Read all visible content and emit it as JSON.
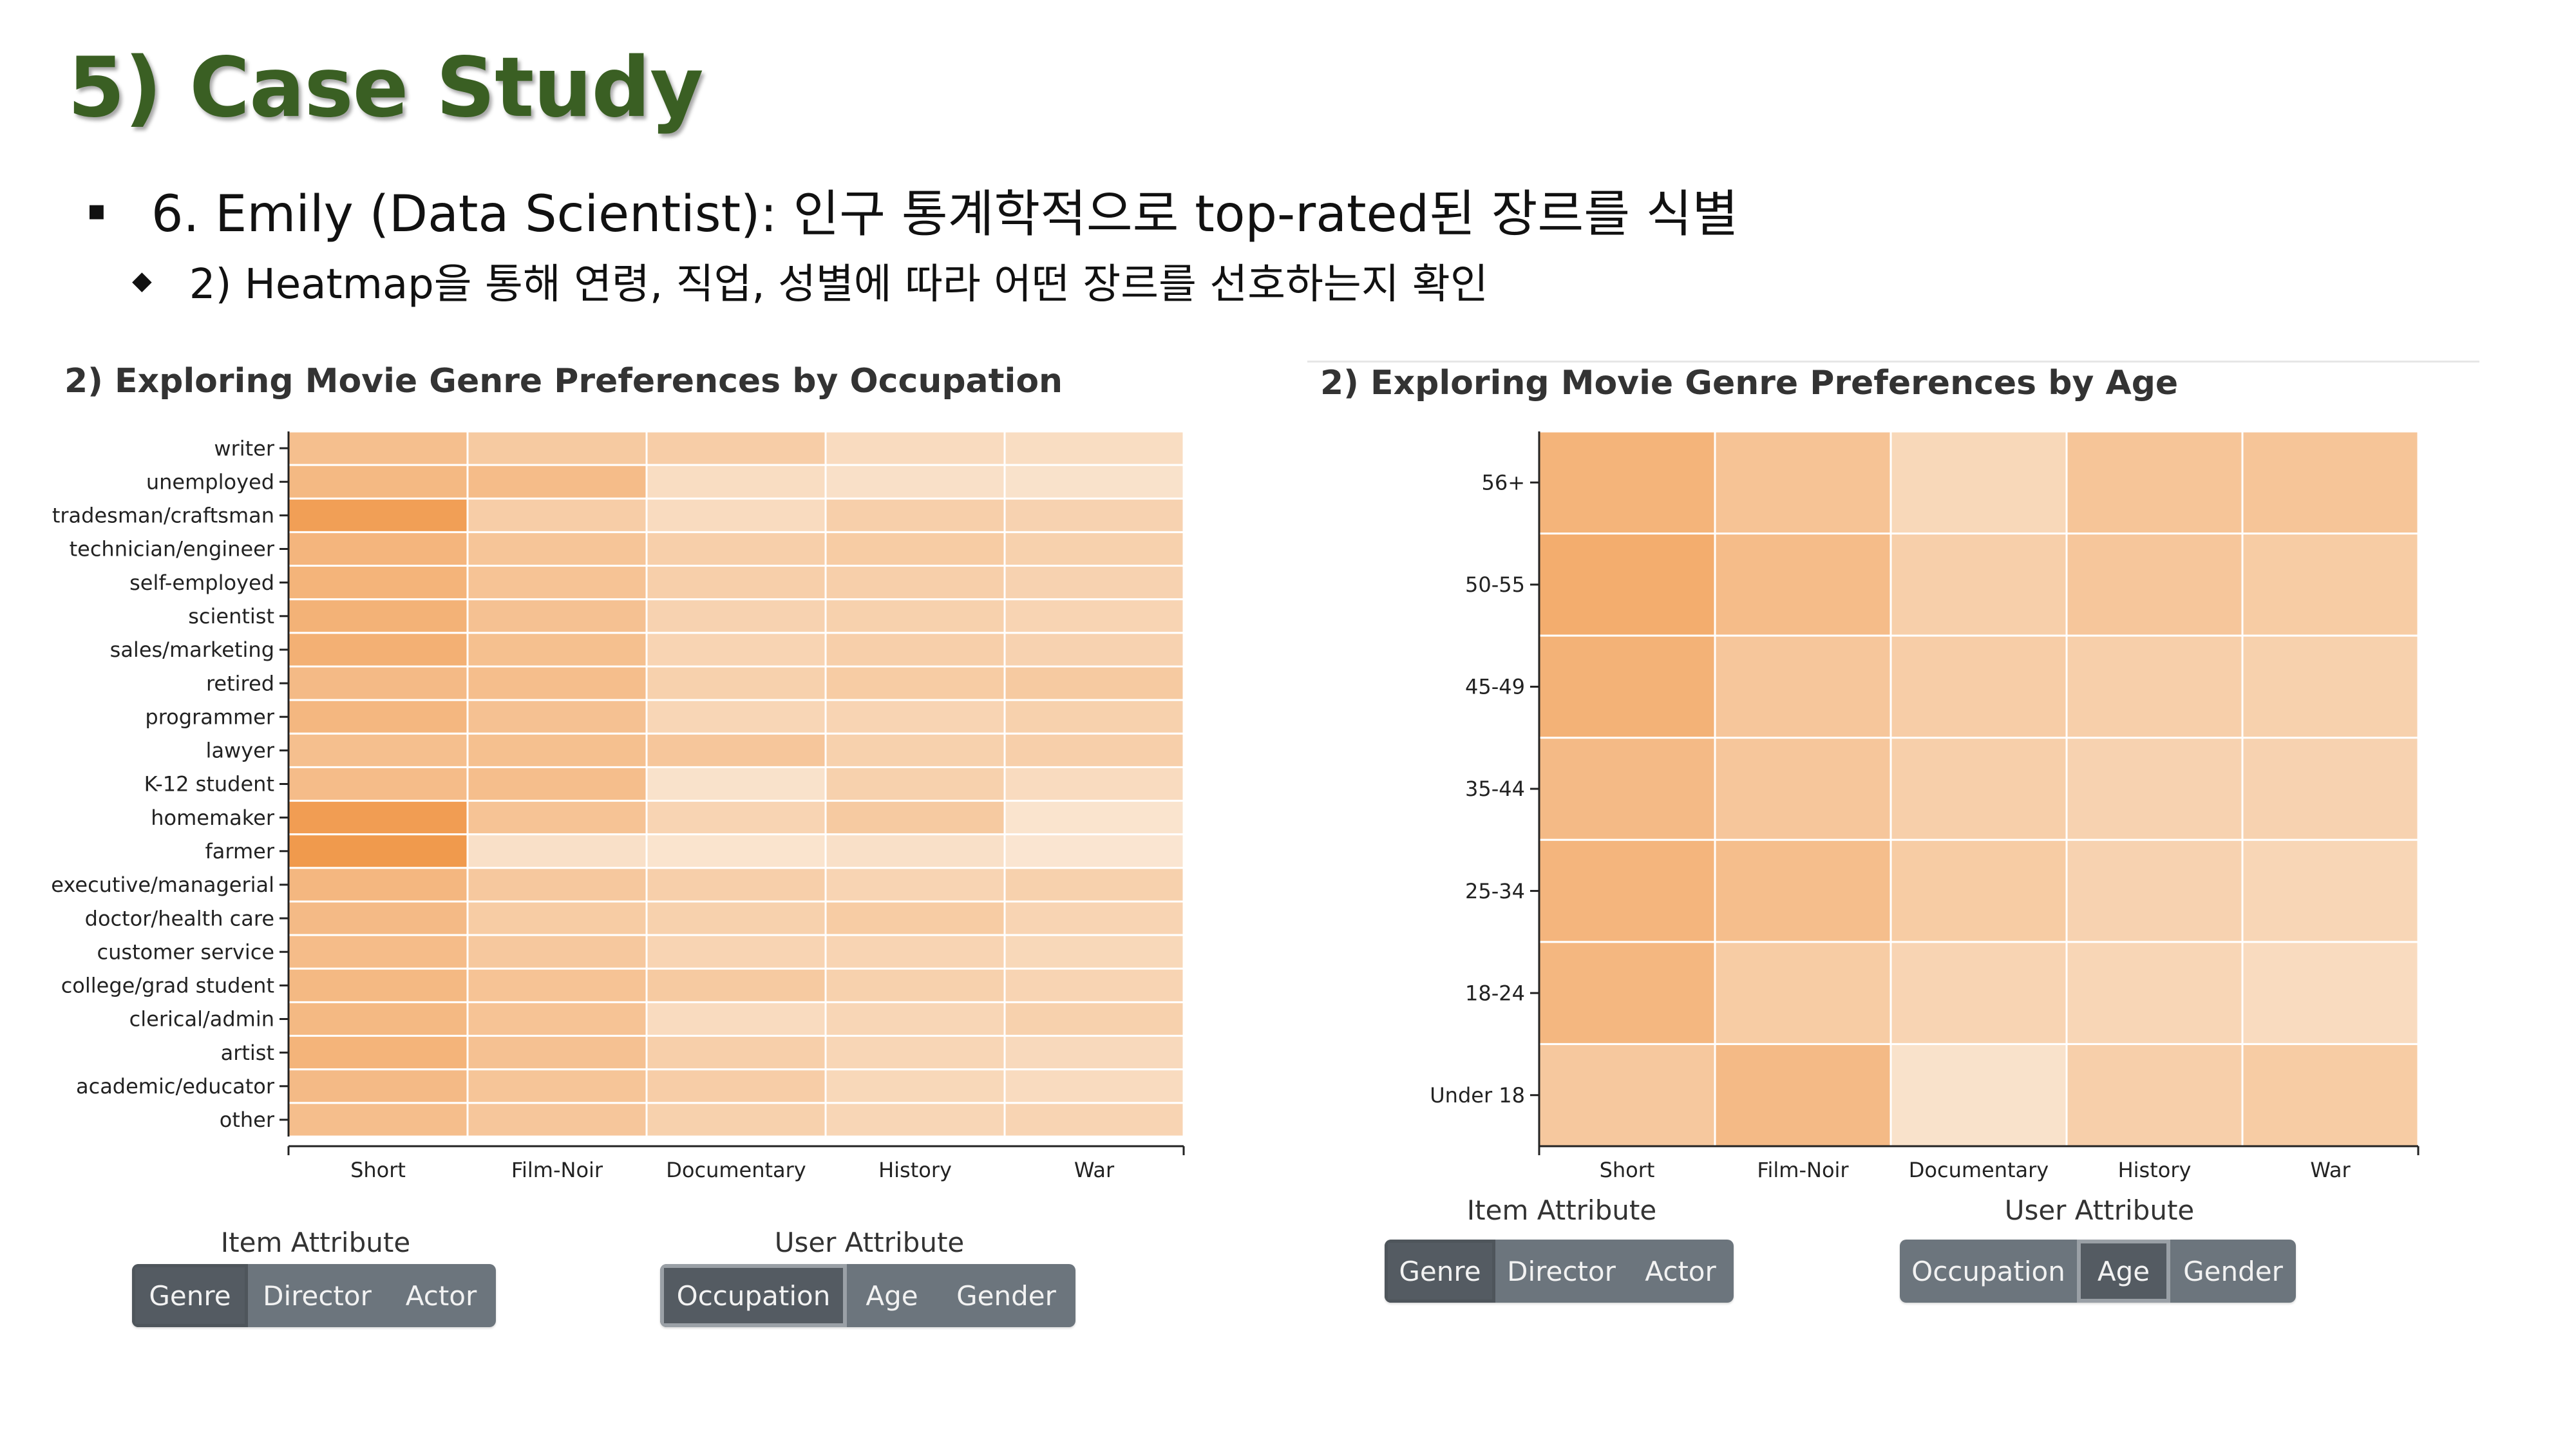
{
  "slide": {
    "title": "5) Case Study",
    "bullet1": "6. Emily (Data Scientist): 인구 통계학적으로 top-rated된 장르를 식별",
    "bullet1_marker": "▪",
    "bullet2": "2) Heatmap을 통해 연령, 직업, 성별에 따라 어떤 장르를 선호하는지 확인",
    "bullet2_marker": "◆"
  },
  "left_panel": {
    "title": "2) Exploring Movie Genre Preferences by Occupation",
    "item_attribute_label": "Item Attribute",
    "user_attribute_label": "User Attribute",
    "item_buttons": [
      "Genre",
      "Director",
      "Actor"
    ],
    "item_active": "Genre",
    "user_buttons": [
      "Occupation",
      "Age",
      "Gender"
    ],
    "user_active": "Occupation"
  },
  "right_panel": {
    "title": "2) Exploring Movie Genre Preferences by Age",
    "item_attribute_label": "Item Attribute",
    "user_attribute_label": "User Attribute",
    "item_buttons": [
      "Genre",
      "Director",
      "Actor"
    ],
    "item_active": "Genre",
    "user_buttons": [
      "Occupation",
      "Age",
      "Gender"
    ],
    "user_active": "Age"
  },
  "colors": {
    "heat_low": "#fbeee0",
    "heat_high": "#f0984a",
    "title_green": "#3a5f23",
    "button": "#6c757d",
    "button_active": "#545b62"
  },
  "chart_data": [
    {
      "type": "heatmap",
      "title": "2) Exploring Movie Genre Preferences by Occupation",
      "x": [
        "Short",
        "Film-Noir",
        "Documentary",
        "History",
        "War"
      ],
      "y": [
        "writer",
        "unemployed",
        "tradesman/craftsman",
        "technician/engineer",
        "self-employed",
        "scientist",
        "sales/marketing",
        "retired",
        "programmer",
        "lawyer",
        "K-12 student",
        "homemaker",
        "farmer",
        "executive/managerial",
        "doctor/health care",
        "customer service",
        "college/grad student",
        "clerical/admin",
        "artist",
        "academic/educator",
        "other"
      ],
      "values": [
        [
          0.55,
          0.42,
          0.38,
          0.22,
          0.2
        ],
        [
          0.62,
          0.58,
          0.2,
          0.16,
          0.14
        ],
        [
          0.92,
          0.38,
          0.22,
          0.36,
          0.32
        ],
        [
          0.66,
          0.48,
          0.36,
          0.4,
          0.34
        ],
        [
          0.68,
          0.5,
          0.36,
          0.36,
          0.32
        ],
        [
          0.7,
          0.52,
          0.32,
          0.34,
          0.3
        ],
        [
          0.72,
          0.54,
          0.3,
          0.36,
          0.32
        ],
        [
          0.6,
          0.56,
          0.34,
          0.4,
          0.42
        ],
        [
          0.64,
          0.52,
          0.28,
          0.3,
          0.34
        ],
        [
          0.55,
          0.54,
          0.46,
          0.34,
          0.36
        ],
        [
          0.58,
          0.56,
          0.14,
          0.34,
          0.22
        ],
        [
          0.94,
          0.5,
          0.3,
          0.42,
          0.12
        ],
        [
          0.98,
          0.16,
          0.12,
          0.16,
          0.1
        ],
        [
          0.64,
          0.44,
          0.36,
          0.3,
          0.34
        ],
        [
          0.6,
          0.4,
          0.34,
          0.4,
          0.3
        ],
        [
          0.58,
          0.44,
          0.3,
          0.3,
          0.26
        ],
        [
          0.62,
          0.5,
          0.42,
          0.34,
          0.3
        ],
        [
          0.62,
          0.5,
          0.22,
          0.28,
          0.34
        ],
        [
          0.68,
          0.52,
          0.36,
          0.28,
          0.24
        ],
        [
          0.6,
          0.48,
          0.38,
          0.26,
          0.22
        ],
        [
          0.56,
          0.46,
          0.34,
          0.28,
          0.3
        ]
      ]
    },
    {
      "type": "heatmap",
      "title": "2) Exploring Movie Genre Preferences by Age",
      "x": [
        "Short",
        "Film-Noir",
        "Documentary",
        "History",
        "War"
      ],
      "y": [
        "56+",
        "50-55",
        "45-49",
        "35-44",
        "25-34",
        "18-24",
        "Under 18"
      ],
      "values": [
        [
          0.68,
          0.5,
          0.26,
          0.48,
          0.48
        ],
        [
          0.76,
          0.58,
          0.36,
          0.46,
          0.4
        ],
        [
          0.7,
          0.46,
          0.38,
          0.36,
          0.34
        ],
        [
          0.6,
          0.46,
          0.36,
          0.32,
          0.32
        ],
        [
          0.66,
          0.56,
          0.4,
          0.32,
          0.28
        ],
        [
          0.64,
          0.4,
          0.3,
          0.28,
          0.22
        ],
        [
          0.44,
          0.6,
          0.14,
          0.36,
          0.4
        ]
      ]
    }
  ]
}
